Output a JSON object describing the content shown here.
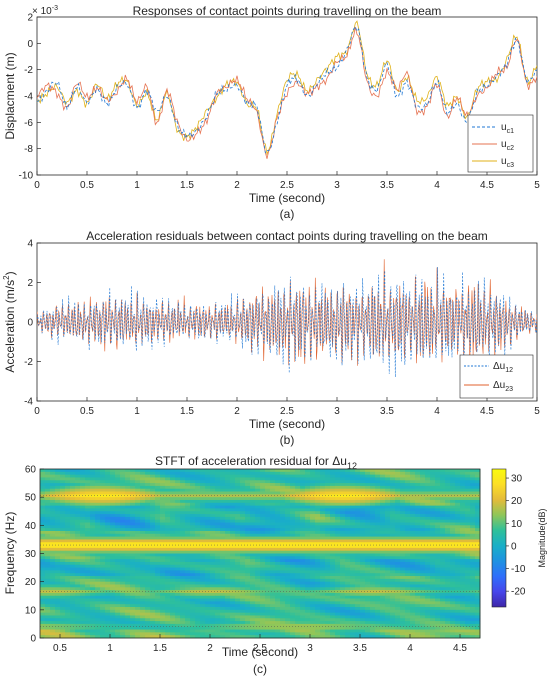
{
  "chart_data": [
    {
      "type": "line",
      "panel_label": "(a)",
      "title": "Responses of contact points during travelling on the beam",
      "xlabel": "Time (second)",
      "ylabel": "Displacment (m)",
      "exponent": "× 10",
      "exponent_power": "-3",
      "xlim": [
        0,
        5
      ],
      "ylim": [
        -10,
        2
      ],
      "xticks": [
        "0",
        "0.5",
        "1",
        "1.5",
        "2",
        "2.5",
        "3",
        "3.5",
        "4",
        "4.5",
        "5"
      ],
      "yticks": [
        "2",
        "0",
        "-2",
        "-4",
        "-6",
        "-8",
        "-10"
      ],
      "grid": false,
      "legend_position": "bottom-right",
      "x": [
        0,
        0.1,
        0.2,
        0.3,
        0.4,
        0.5,
        0.6,
        0.7,
        0.8,
        0.9,
        1.0,
        1.1,
        1.2,
        1.3,
        1.4,
        1.5,
        1.6,
        1.7,
        1.8,
        1.9,
        2.0,
        2.1,
        2.2,
        2.3,
        2.4,
        2.5,
        2.6,
        2.7,
        2.8,
        2.9,
        3.0,
        3.1,
        3.2,
        3.3,
        3.4,
        3.5,
        3.6,
        3.7,
        3.8,
        3.9,
        4.0,
        4.1,
        4.2,
        4.3,
        4.4,
        4.5,
        4.6,
        4.7,
        4.8,
        4.9,
        5.0
      ],
      "series": [
        {
          "name": "u",
          "sub": "c1",
          "color": "#1f77d4",
          "dash": "3,2",
          "values": [
            -4.5,
            -3.6,
            -3.0,
            -4.8,
            -3.3,
            -4.5,
            -3.5,
            -4.6,
            -3.4,
            -3.1,
            -4.9,
            -3.6,
            -5.2,
            -4.0,
            -6.2,
            -7.0,
            -6.6,
            -5.5,
            -3.8,
            -3.5,
            -3.2,
            -4.5,
            -4.9,
            -8.3,
            -6.0,
            -3.2,
            -2.7,
            -4.0,
            -3.1,
            -2.2,
            -1.8,
            -0.5,
            1.2,
            -2.6,
            -3.5,
            -1.6,
            -4.0,
            -3.0,
            -4.8,
            -4.6,
            -3.0,
            -5.2,
            -4.6,
            -6.0,
            -3.8,
            -3.2,
            -2.5,
            -1.5,
            0.2,
            -2.8,
            -2.0
          ]
        },
        {
          "name": "u",
          "sub": "c2",
          "color": "#e67352",
          "dash": "",
          "values": [
            -4.0,
            -3.2,
            -3.8,
            -4.9,
            -3.0,
            -4.1,
            -3.4,
            -4.3,
            -3.7,
            -2.7,
            -4.4,
            -3.3,
            -6.1,
            -3.6,
            -5.9,
            -7.3,
            -6.8,
            -5.8,
            -3.8,
            -3.3,
            -2.8,
            -4.2,
            -5.3,
            -8.5,
            -5.7,
            -3.8,
            -3.0,
            -3.8,
            -3.3,
            -2.7,
            -1.4,
            -0.9,
            0.9,
            -2.9,
            -4.0,
            -2.2,
            -3.5,
            -2.3,
            -5.1,
            -4.8,
            -3.1,
            -5.6,
            -4.1,
            -5.5,
            -4.0,
            -3.4,
            -2.2,
            -1.8,
            0.3,
            -3.1,
            -2.5
          ]
        },
        {
          "name": "u",
          "sub": "c3",
          "color": "#e0b21a",
          "dash": "",
          "values": [
            -4.4,
            -3.8,
            -3.3,
            -4.5,
            -3.6,
            -4.6,
            -3.1,
            -4.2,
            -3.1,
            -2.9,
            -4.7,
            -3.8,
            -5.8,
            -3.8,
            -6.5,
            -7.1,
            -6.3,
            -5.1,
            -4.1,
            -3.1,
            -3.0,
            -4.6,
            -5.0,
            -8.2,
            -5.4,
            -2.8,
            -2.4,
            -3.6,
            -2.8,
            -1.9,
            -1.0,
            -0.6,
            1.5,
            -2.3,
            -3.2,
            -1.3,
            -3.6,
            -2.6,
            -4.3,
            -4.1,
            -2.6,
            -4.7,
            -4.1,
            -5.6,
            -3.5,
            -2.9,
            -2.7,
            -1.2,
            0.5,
            -2.9,
            -1.7
          ]
        }
      ]
    },
    {
      "type": "line",
      "panel_label": "(b)",
      "title": "Acceleration residuals between contact points during travelling on the beam",
      "xlabel": "Time (second)",
      "ylabel": "Acceleration (m/s",
      "ylabel_sup": "2",
      "ylabel_end": ")",
      "xlim": [
        0,
        5
      ],
      "ylim": [
        -4,
        4
      ],
      "xticks": [
        "0",
        "0.5",
        "1",
        "1.5",
        "2",
        "2.5",
        "3",
        "3.5",
        "4",
        "4.5",
        "5"
      ],
      "yticks": [
        "4",
        "2",
        "0",
        "-2",
        "-4"
      ],
      "grid": false,
      "legend_position": "bottom-right",
      "envelope": {
        "x": [
          0,
          0.25,
          0.5,
          0.75,
          1.0,
          1.25,
          1.5,
          1.75,
          2.0,
          2.25,
          2.5,
          2.75,
          3.0,
          3.25,
          3.5,
          3.75,
          4.0,
          4.25,
          4.5,
          4.75,
          5.0
        ],
        "amp": [
          0.5,
          1.3,
          1.2,
          1.8,
          1.6,
          1.3,
          1.2,
          1.0,
          1.6,
          2.0,
          2.6,
          2.4,
          2.5,
          2.2,
          2.9,
          2.7,
          2.9,
          2.6,
          2.5,
          1.4,
          0.6
        ]
      },
      "series": [
        {
          "name": "Δu",
          "sub": "12",
          "color": "#1f77d4",
          "dash": "2,1.5"
        },
        {
          "name": "Δu",
          "sub": "23",
          "color": "#e0622e",
          "dash": ""
        }
      ]
    },
    {
      "type": "heatmap",
      "panel_label": "(c)",
      "title": "STFT of acceleration residual for Δu",
      "title_sub": "12",
      "xlabel": "Time (second)",
      "ylabel": "Frequency (Hz)",
      "colorbar_label": "Magnitude(dB)",
      "xlim": [
        0.3,
        4.7
      ],
      "ylim": [
        0,
        60
      ],
      "xticks": [
        "0.5",
        "1",
        "1.5",
        "2",
        "2.5",
        "3",
        "3.5",
        "4",
        "4.5"
      ],
      "yticks": [
        "60",
        "50",
        "40",
        "30",
        "20",
        "10",
        "0"
      ],
      "colorbar_ticks": [
        "30",
        "20",
        "10",
        "0",
        "-10",
        "-20"
      ],
      "clim": [
        -27,
        34
      ],
      "bands_hz": [
        {
          "freq": 33,
          "level": 33
        },
        {
          "freq": 50.5,
          "level": 30
        },
        {
          "freq": 16.5,
          "level": 18
        },
        {
          "freq": 4,
          "level": 17
        }
      ],
      "colormap": [
        "#3e26a8",
        "#4746eb",
        "#2f6ffb",
        "#1e92e1",
        "#19afc7",
        "#2fc09a",
        "#8fc659",
        "#e4bb3a",
        "#fcde26",
        "#f9fb0e"
      ]
    }
  ]
}
